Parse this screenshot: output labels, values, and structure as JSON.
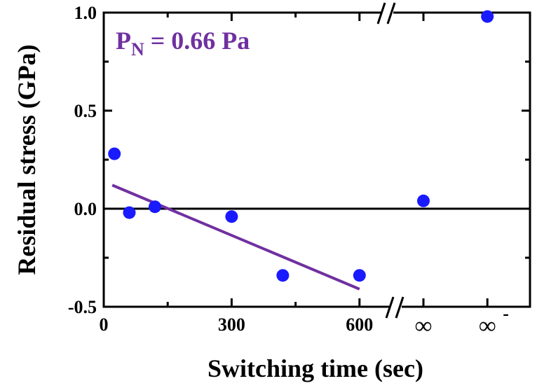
{
  "chart_data": {
    "type": "scatter",
    "title": "",
    "xlabel": "Switching time (sec)",
    "ylabel": "Residual stress (GPa)",
    "xlim": [
      0,
      1000
    ],
    "ylim": [
      -0.5,
      1.0
    ],
    "y_ticks": [
      {
        "value": 1.0,
        "label": "1.0"
      },
      {
        "value": 0.5,
        "label": "0.5"
      },
      {
        "value": 0.0,
        "label": "0.0"
      },
      {
        "value": -0.5,
        "label": "-0.5"
      }
    ],
    "x_ticks": [
      {
        "value": 0,
        "label": "0"
      },
      {
        "value": 300,
        "label": "300"
      },
      {
        "value": 600,
        "label": "600"
      }
    ],
    "x_break_categories": [
      {
        "value": 750,
        "label": "∞"
      },
      {
        "value": 900,
        "label": "∞",
        "superscript": "-"
      }
    ],
    "reference_line_y": 0.0,
    "points": [
      {
        "x": 25,
        "y": 0.28
      },
      {
        "x": 60,
        "y": -0.02
      },
      {
        "x": 120,
        "y": 0.01
      },
      {
        "x": 300,
        "y": -0.04
      },
      {
        "x": 420,
        "y": -0.34
      },
      {
        "x": 600,
        "y": -0.34
      },
      {
        "x": 750,
        "y": 0.04
      },
      {
        "x": 900,
        "y": 0.98
      }
    ],
    "fit_line": {
      "x": [
        20,
        600
      ],
      "y": [
        0.12,
        -0.41
      ]
    },
    "annotation": {
      "main": "P",
      "sub": "N",
      "rest": " = 0.66 Pa"
    },
    "colors": {
      "points": "#1a1aff",
      "fit_line": "#7030a0",
      "axes": "#000000",
      "annotation": "#7030a0"
    },
    "grid": false,
    "legend": "none"
  }
}
